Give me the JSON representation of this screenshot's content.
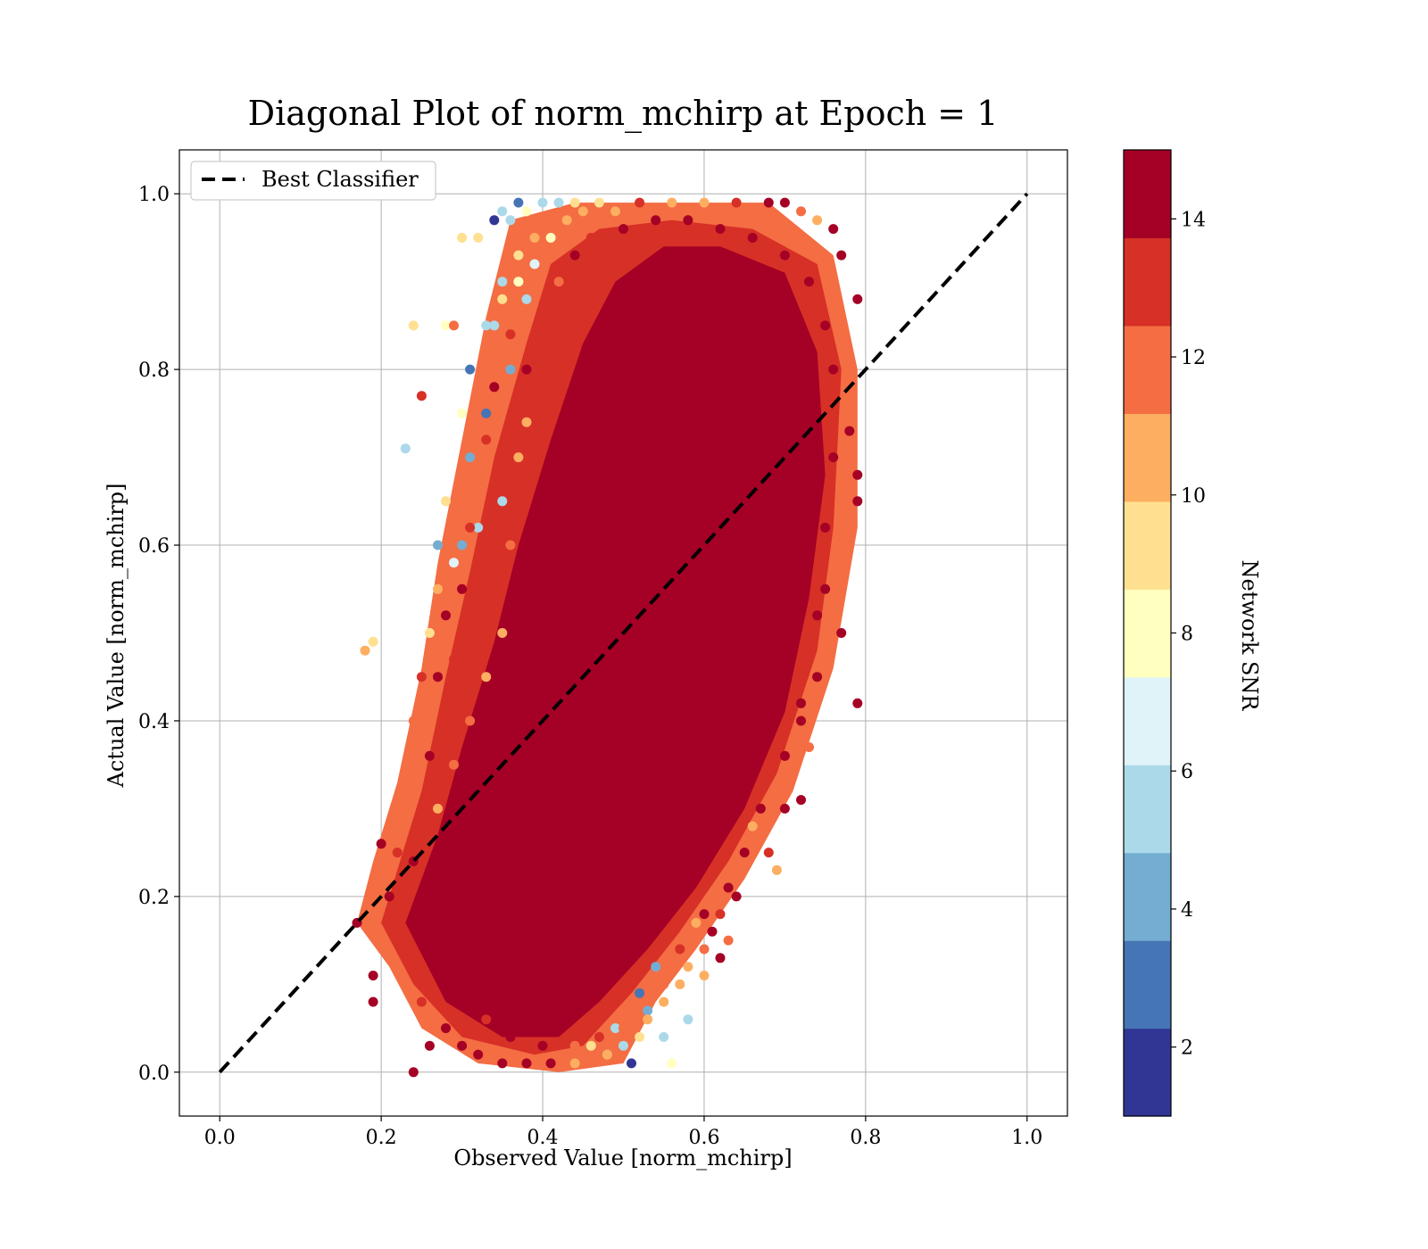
{
  "chart_data": {
    "type": "scatter",
    "title": "Diagonal Plot of norm_mchirp at Epoch = 1",
    "xlabel": "Observed Value [norm_mchirp]",
    "ylabel": "Actual Value [norm_mchirp]",
    "xlim": [
      -0.05,
      1.05
    ],
    "ylim": [
      -0.05,
      1.05
    ],
    "x_ticks": [
      "0.0",
      "0.2",
      "0.4",
      "0.6",
      "0.8",
      "1.0"
    ],
    "y_ticks": [
      "0.0",
      "0.2",
      "0.4",
      "0.6",
      "0.8",
      "1.0"
    ],
    "grid": true,
    "legend": {
      "position": "top-left",
      "entries": [
        "Best Classifier"
      ]
    },
    "reference_line": {
      "name": "Best Classifier",
      "style": "dashed",
      "color": "#000000",
      "x": [
        0.0,
        1.0
      ],
      "y": [
        0.0,
        1.0
      ]
    },
    "colorbar": {
      "label": "Network SNR",
      "range": [
        1,
        15
      ],
      "ticks": [
        "2",
        "4",
        "6",
        "8",
        "10",
        "12",
        "14"
      ],
      "colors": [
        "#313695",
        "#4575b4",
        "#74add1",
        "#abd9e9",
        "#e0f3f8",
        "#ffffbf",
        "#fee090",
        "#fdae61",
        "#f46d43",
        "#d73027",
        "#a50026"
      ]
    },
    "series": [
      {
        "points": [
          [
            0.18,
            0.48,
            10
          ],
          [
            0.19,
            0.49,
            9
          ],
          [
            0.17,
            0.17,
            14
          ],
          [
            0.19,
            0.08,
            14
          ],
          [
            0.19,
            0.11,
            14
          ],
          [
            0.2,
            0.26,
            14
          ],
          [
            0.23,
            0.71,
            5
          ],
          [
            0.24,
            0.85,
            9
          ],
          [
            0.25,
            0.77,
            13
          ],
          [
            0.24,
            0.0,
            14
          ],
          [
            0.28,
            0.85,
            8
          ],
          [
            0.29,
            0.85,
            12
          ],
          [
            0.3,
            0.95,
            9
          ],
          [
            0.32,
            0.95,
            9
          ],
          [
            0.31,
            0.8,
            3
          ],
          [
            0.34,
            0.97,
            1
          ],
          [
            0.35,
            0.98,
            5
          ],
          [
            0.36,
            0.97,
            5
          ],
          [
            0.37,
            0.99,
            3
          ],
          [
            0.38,
            0.98,
            8
          ],
          [
            0.4,
            0.99,
            6
          ],
          [
            0.42,
            0.99,
            5
          ],
          [
            0.44,
            0.99,
            9
          ],
          [
            0.47,
            0.99,
            9
          ],
          [
            0.49,
            0.98,
            11
          ],
          [
            0.3,
            0.75,
            8
          ],
          [
            0.31,
            0.7,
            4
          ],
          [
            0.28,
            0.65,
            9
          ],
          [
            0.27,
            0.55,
            10
          ],
          [
            0.26,
            0.5,
            9
          ],
          [
            0.3,
            0.6,
            4
          ],
          [
            0.32,
            0.62,
            5
          ],
          [
            0.33,
            0.85,
            6
          ],
          [
            0.34,
            0.85,
            5
          ],
          [
            0.35,
            0.9,
            6
          ],
          [
            0.36,
            0.8,
            4
          ],
          [
            0.37,
            0.9,
            8
          ],
          [
            0.38,
            0.88,
            6
          ],
          [
            0.39,
            0.92,
            7
          ],
          [
            0.41,
            0.95,
            8
          ],
          [
            0.29,
            0.58,
            7
          ],
          [
            0.27,
            0.6,
            4
          ],
          [
            0.33,
            0.75,
            3
          ],
          [
            0.35,
            0.65,
            6
          ],
          [
            0.52,
            0.09,
            3
          ],
          [
            0.53,
            0.07,
            4
          ],
          [
            0.55,
            0.04,
            6
          ],
          [
            0.5,
            0.03,
            5
          ],
          [
            0.48,
            0.02,
            6
          ],
          [
            0.56,
            0.01,
            8
          ],
          [
            0.58,
            0.06,
            5
          ],
          [
            0.57,
            0.1,
            11
          ],
          [
            0.51,
            0.01,
            2
          ],
          [
            0.54,
            0.12,
            4
          ],
          [
            0.49,
            0.05,
            6
          ],
          [
            0.46,
            0.03,
            9
          ],
          [
            0.44,
            0.01,
            10
          ],
          [
            0.6,
            0.11,
            10
          ],
          [
            0.59,
            0.17,
            11
          ],
          [
            0.62,
            0.13,
            14
          ],
          [
            0.63,
            0.15,
            12
          ],
          [
            0.66,
            0.28,
            10
          ],
          [
            0.69,
            0.23,
            11
          ],
          [
            0.73,
            0.37,
            12
          ],
          [
            0.72,
            0.31,
            14
          ],
          [
            0.79,
            0.42,
            14
          ],
          [
            0.77,
            0.5,
            14
          ],
          [
            0.78,
            0.6,
            12
          ],
          [
            0.79,
            0.65,
            14
          ],
          [
            0.79,
            0.68,
            14
          ],
          [
            0.78,
            0.73,
            14
          ],
          [
            0.79,
            0.88,
            14
          ],
          [
            0.77,
            0.93,
            14
          ],
          [
            0.76,
            0.96,
            14
          ],
          [
            0.74,
            0.97,
            10
          ],
          [
            0.72,
            0.98,
            12
          ],
          [
            0.7,
            0.99,
            14
          ],
          [
            0.68,
            0.99,
            14
          ],
          [
            0.64,
            0.99,
            13
          ],
          [
            0.6,
            0.99,
            11
          ],
          [
            0.56,
            0.99,
            10
          ],
          [
            0.52,
            0.99,
            13
          ],
          [
            0.75,
            0.55,
            14
          ],
          [
            0.74,
            0.45,
            14
          ],
          [
            0.72,
            0.4,
            14
          ],
          [
            0.7,
            0.3,
            14
          ],
          [
            0.68,
            0.25,
            13
          ],
          [
            0.64,
            0.2,
            14
          ],
          [
            0.62,
            0.18,
            13
          ],
          [
            0.61,
            0.16,
            14
          ],
          [
            0.21,
            0.2,
            14
          ],
          [
            0.22,
            0.15,
            13
          ],
          [
            0.23,
            0.1,
            12
          ],
          [
            0.25,
            0.08,
            13
          ],
          [
            0.26,
            0.03,
            14
          ],
          [
            0.28,
            0.05,
            14
          ],
          [
            0.3,
            0.03,
            14
          ],
          [
            0.32,
            0.02,
            14
          ],
          [
            0.35,
            0.01,
            14
          ],
          [
            0.38,
            0.01,
            14
          ],
          [
            0.41,
            0.01,
            14
          ],
          [
            0.24,
            0.4,
            12
          ],
          [
            0.25,
            0.45,
            13
          ],
          [
            0.26,
            0.36,
            14
          ],
          [
            0.23,
            0.3,
            12
          ],
          [
            0.22,
            0.25,
            13
          ],
          [
            0.27,
            0.45,
            14
          ],
          [
            0.28,
            0.52,
            14
          ],
          [
            0.29,
            0.47,
            13
          ],
          [
            0.3,
            0.55,
            14
          ],
          [
            0.31,
            0.62,
            13
          ],
          [
            0.32,
            0.68,
            12
          ],
          [
            0.33,
            0.72,
            13
          ],
          [
            0.34,
            0.78,
            14
          ],
          [
            0.36,
            0.84,
            13
          ],
          [
            0.38,
            0.8,
            14
          ],
          [
            0.4,
            0.86,
            13
          ],
          [
            0.42,
            0.9,
            12
          ],
          [
            0.44,
            0.93,
            14
          ],
          [
            0.46,
            0.95,
            13
          ],
          [
            0.5,
            0.96,
            14
          ],
          [
            0.54,
            0.97,
            14
          ],
          [
            0.58,
            0.97,
            14
          ],
          [
            0.62,
            0.96,
            14
          ],
          [
            0.66,
            0.95,
            14
          ],
          [
            0.7,
            0.93,
            14
          ],
          [
            0.73,
            0.9,
            14
          ],
          [
            0.75,
            0.85,
            14
          ],
          [
            0.76,
            0.8,
            14
          ],
          [
            0.76,
            0.7,
            14
          ],
          [
            0.75,
            0.62,
            14
          ],
          [
            0.74,
            0.52,
            14
          ],
          [
            0.72,
            0.42,
            14
          ],
          [
            0.7,
            0.36,
            14
          ],
          [
            0.67,
            0.3,
            14
          ],
          [
            0.65,
            0.25,
            14
          ],
          [
            0.63,
            0.21,
            14
          ],
          [
            0.6,
            0.18,
            14
          ],
          [
            0.57,
            0.14,
            13
          ],
          [
            0.55,
            0.1,
            12
          ],
          [
            0.53,
            0.06,
            11
          ],
          [
            0.5,
            0.05,
            12
          ],
          [
            0.47,
            0.04,
            13
          ],
          [
            0.44,
            0.03,
            12
          ],
          [
            0.4,
            0.03,
            14
          ],
          [
            0.36,
            0.04,
            14
          ],
          [
            0.33,
            0.06,
            13
          ],
          [
            0.3,
            0.09,
            14
          ],
          [
            0.27,
            0.12,
            14
          ],
          [
            0.25,
            0.18,
            14
          ],
          [
            0.24,
            0.24,
            14
          ],
          [
            0.35,
            0.5,
            11
          ],
          [
            0.36,
            0.6,
            12
          ],
          [
            0.37,
            0.7,
            11
          ],
          [
            0.38,
            0.74,
            10
          ],
          [
            0.33,
            0.45,
            11
          ],
          [
            0.31,
            0.4,
            12
          ],
          [
            0.29,
            0.35,
            12
          ],
          [
            0.27,
            0.3,
            11
          ],
          [
            0.35,
            0.88,
            9
          ],
          [
            0.37,
            0.93,
            9
          ],
          [
            0.39,
            0.95,
            10
          ],
          [
            0.43,
            0.97,
            11
          ],
          [
            0.45,
            0.98,
            10
          ],
          [
            0.55,
            0.08,
            10
          ],
          [
            0.58,
            0.12,
            11
          ],
          [
            0.6,
            0.14,
            12
          ],
          [
            0.52,
            0.04,
            9
          ],
          [
            0.48,
            0.02,
            11
          ]
        ]
      }
    ]
  }
}
